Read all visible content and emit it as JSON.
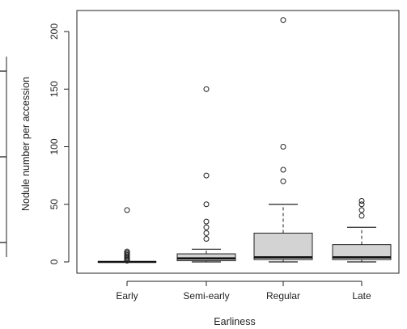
{
  "chart_data": {
    "type": "boxplot",
    "xlabel": "Earliness",
    "ylabel": "Nodule number per accession",
    "categories": [
      "Early",
      "Semi-early",
      "Regular",
      "Late"
    ],
    "ylim": [
      -8,
      218
    ],
    "yticks": [
      0,
      50,
      100,
      150,
      200
    ],
    "grid": false,
    "colors": {
      "box_fill": "#d3d3d3",
      "stroke": "#222222"
    },
    "boxes": [
      {
        "category": "Early",
        "lower_whisker": 0,
        "q1": 0,
        "median": 0,
        "q3": 0,
        "upper_whisker": 0,
        "outliers": [
          1,
          2,
          3,
          4,
          5,
          6,
          7,
          8,
          9,
          45
        ]
      },
      {
        "category": "Semi-early",
        "lower_whisker": 0,
        "q1": 1,
        "median": 3,
        "q3": 7,
        "upper_whisker": 11,
        "outliers": [
          20,
          25,
          30,
          35,
          50,
          75,
          150
        ]
      },
      {
        "category": "Regular",
        "lower_whisker": 0,
        "q1": 2,
        "median": 4,
        "q3": 25,
        "upper_whisker": 50,
        "outliers": [
          70,
          80,
          100,
          210
        ]
      },
      {
        "category": "Late",
        "lower_whisker": 0,
        "q1": 2,
        "median": 4,
        "q3": 15,
        "upper_whisker": 30,
        "outliers": [
          40,
          45,
          50,
          53
        ]
      }
    ]
  }
}
